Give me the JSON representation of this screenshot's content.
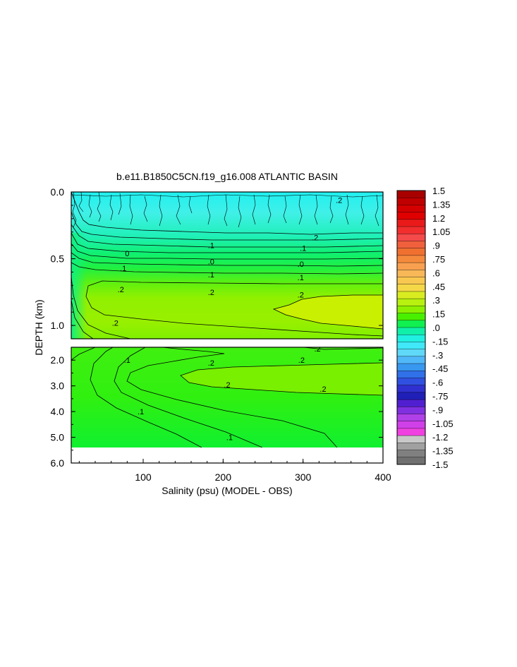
{
  "chart_data": {
    "type": "heatmap",
    "title": "b.e11.B1850C5CN.f19_g16.008 ATLANTIC BASIN",
    "xlabel": "Salinity (psu) (MODEL - OBS)",
    "ylabel": "DEPTH (km)",
    "xlim": [
      10,
      400
    ],
    "x_ticks": [
      "100",
      "200",
      "300",
      "400"
    ],
    "panels": [
      {
        "name": "upper",
        "ylim": [
          0.0,
          1.1
        ],
        "y_ticks": [
          "0.0",
          "0.5",
          "1.0"
        ]
      },
      {
        "name": "lower",
        "ylim": [
          1.5,
          6.0
        ],
        "y_ticks": [
          "2.0",
          "3.0",
          "4.0",
          "5.0",
          "6.0"
        ]
      }
    ],
    "colorbar": {
      "labels": [
        "1.5",
        "1.35",
        "1.2",
        "1.05",
        ".9",
        ".75",
        ".6",
        ".45",
        ".3",
        ".15",
        ".0",
        "-.15",
        "-.3",
        "-.45",
        "-.6",
        "-.75",
        "-.9",
        "-1.05",
        "-1.2",
        "-1.35",
        "-1.5"
      ],
      "colors": [
        "#a80000",
        "#c00000",
        "#d40000",
        "#e00000",
        "#ea1a1a",
        "#f22e2e",
        "#f54a4a",
        "#f0603c",
        "#f07030",
        "#f58a3c",
        "#f8a050",
        "#f8b858",
        "#f8c850",
        "#f5d848",
        "#d8ec20",
        "#b8f010",
        "#8cf000",
        "#48f000",
        "#10f050",
        "#10f0a8",
        "#20f0e0",
        "#40e8f8",
        "#60d8f8",
        "#50b8f8",
        "#3898f0",
        "#3070e8",
        "#3050e0",
        "#3030d0",
        "#2020b8",
        "#5020d0",
        "#8030e0",
        "#b040e8",
        "#d040e8",
        "#f040e0",
        "#c8c8c8",
        "#a0a0a0",
        "#808080",
        "#707070"
      ]
    },
    "contour_labels": [
      {
        "panel": "upper",
        "text": ".2",
        "x": 345,
        "y": 0.06
      },
      {
        "panel": "upper",
        "text": ".2",
        "x": 315,
        "y": 0.34
      },
      {
        "panel": "upper",
        "text": "0",
        "x": 80,
        "y": 0.46
      },
      {
        "panel": "upper",
        "text": ".1",
        "x": 185,
        "y": 0.4
      },
      {
        "panel": "upper",
        "text": ".1",
        "x": 300,
        "y": 0.42
      },
      {
        "panel": "upper",
        "text": ".0",
        "x": 185,
        "y": 0.52
      },
      {
        "panel": "upper",
        "text": ".0",
        "x": 297,
        "y": 0.54
      },
      {
        "panel": "upper",
        "text": ".1",
        "x": 75,
        "y": 0.57
      },
      {
        "panel": "upper",
        "text": ".1",
        "x": 185,
        "y": 0.62
      },
      {
        "panel": "upper",
        "text": ".1",
        "x": 297,
        "y": 0.64
      },
      {
        "panel": "upper",
        "text": ".2",
        "x": 72,
        "y": 0.73
      },
      {
        "panel": "upper",
        "text": ".2",
        "x": 185,
        "y": 0.75
      },
      {
        "panel": "upper",
        "text": ".2",
        "x": 297,
        "y": 0.77
      },
      {
        "panel": "upper",
        "text": ".2",
        "x": 65,
        "y": 0.98
      },
      {
        "panel": "lower",
        "text": ".2",
        "x": 318,
        "y": 1.56
      },
      {
        "panel": "lower",
        "text": ".1",
        "x": 80,
        "y": 2.0
      },
      {
        "panel": "lower",
        "text": ".2",
        "x": 185,
        "y": 2.1
      },
      {
        "panel": "lower",
        "text": ".2",
        "x": 298,
        "y": 1.99
      },
      {
        "panel": "lower",
        "text": ".2",
        "x": 205,
        "y": 2.96
      },
      {
        "panel": "lower",
        "text": ".2",
        "x": 325,
        "y": 3.12
      },
      {
        "panel": "lower",
        "text": ".1",
        "x": 97,
        "y": 4.0
      },
      {
        "panel": "lower",
        "text": ".1",
        "x": 208,
        "y": 5.0
      }
    ]
  }
}
